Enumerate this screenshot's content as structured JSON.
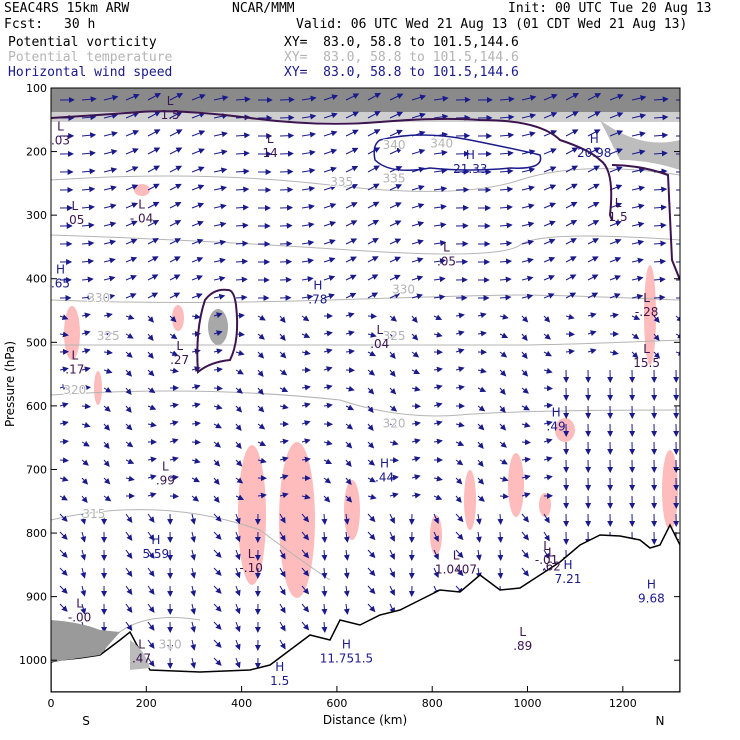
{
  "header": {
    "model": "SEAC4RS 15km ARW",
    "org": "NCAR/MMM",
    "init": "Init: 00 UTC Tue 20 Aug 13",
    "fcst_label": "Fcst:",
    "fcst_value": "30 h",
    "valid": "Valid: 06 UTC Wed 21 Aug 13 (01 CDT Wed 21 Aug 13)"
  },
  "fields": [
    {
      "name": "Potential vorticity",
      "xy": "XY=  83.0, 58.8 to 101.5,144.6",
      "color": "#000000"
    },
    {
      "name": "Potential temperature",
      "xy": "XY=  83.0, 58.8 to 101.5,144.6",
      "color": "#b4b4b4"
    },
    {
      "name": "Horizontal wind speed",
      "xy": "XY=  83.0, 58.8 to 101.5,144.6",
      "color": "#1a1a8c"
    }
  ],
  "colors": {
    "pv_contour": "#3c1450",
    "theta_contour": "#b4b4b4",
    "wind_vector": "#1a1a8c",
    "pv_shade": "#ffbcbc",
    "terrain": "#000000"
  },
  "chart_data": {
    "type": "cross-section",
    "xlabel": "Distance (km)",
    "ylabel": "Pressure (hPa)",
    "xlim": [
      0,
      1320
    ],
    "ylim": [
      1050,
      100
    ],
    "x_ticks": [
      0,
      200,
      400,
      600,
      800,
      1000,
      1200
    ],
    "y_ticks": [
      100,
      200,
      300,
      400,
      500,
      600,
      700,
      800,
      900,
      1000
    ],
    "left_end": "S",
    "right_end": "N",
    "theta_labels": [
      {
        "text": "335",
        "x": 610,
        "y": 248
      },
      {
        "text": "335",
        "x": 720,
        "y": 242
      },
      {
        "text": "340",
        "x": 720,
        "y": 190
      },
      {
        "text": "340",
        "x": 820,
        "y": 187
      },
      {
        "text": "330",
        "x": 100,
        "y": 430
      },
      {
        "text": "330",
        "x": 740,
        "y": 417
      },
      {
        "text": "325",
        "x": 120,
        "y": 490
      },
      {
        "text": "325",
        "x": 720,
        "y": 490
      },
      {
        "text": "320",
        "x": 50,
        "y": 575
      },
      {
        "text": "320",
        "x": 720,
        "y": 628
      },
      {
        "text": "315",
        "x": 90,
        "y": 770
      },
      {
        "text": "310",
        "x": 250,
        "y": 975
      }
    ],
    "extrema": [
      {
        "type": "L",
        "value": ".03",
        "x": 20,
        "y": 170
      },
      {
        "type": "L",
        "value": "1.5",
        "x": 250,
        "y": 130
      },
      {
        "type": "L",
        "value": "14",
        "x": 460,
        "y": 190
      },
      {
        "type": "H",
        "value": "21.33",
        "x": 880,
        "y": 215
      },
      {
        "type": "H",
        "value": "20.98",
        "x": 1140,
        "y": 190
      },
      {
        "type": "L",
        "value": "1.5",
        "x": 1190,
        "y": 290
      },
      {
        "type": "L",
        "value": ".05",
        "x": 50,
        "y": 295
      },
      {
        "type": "L",
        "value": "-.04",
        "x": 190,
        "y": 293
      },
      {
        "type": "L",
        "value": ".05",
        "x": 830,
        "y": 360
      },
      {
        "type": "H",
        "value": ".65",
        "x": 20,
        "y": 395
      },
      {
        "type": "H",
        "value": ".78",
        "x": 560,
        "y": 420
      },
      {
        "type": "L",
        "value": ".17",
        "x": 50,
        "y": 530
      },
      {
        "type": "L",
        "value": ".27",
        "x": 270,
        "y": 515
      },
      {
        "type": "L",
        "value": ".04",
        "x": 690,
        "y": 490
      },
      {
        "type": "L",
        "value": "15.5",
        "x": 1250,
        "y": 520
      },
      {
        "type": "L",
        "value": "-.28",
        "x": 1250,
        "y": 440
      },
      {
        "type": "H",
        "value": ".49",
        "x": 1060,
        "y": 620
      },
      {
        "type": "L",
        "value": ".99",
        "x": 240,
        "y": 705
      },
      {
        "type": "H",
        "value": ".44",
        "x": 700,
        "y": 700
      },
      {
        "type": "H",
        "value": "5.59",
        "x": 220,
        "y": 820
      },
      {
        "type": "L",
        "value": "-.10",
        "x": 420,
        "y": 842
      },
      {
        "type": "L",
        "value": "1.0407",
        "x": 850,
        "y": 845
      },
      {
        "type": "L",
        "value": ".62",
        "x": 1050,
        "y": 840
      },
      {
        "type": "L",
        "value": "-.01",
        "x": 1040,
        "y": 830
      },
      {
        "type": "H",
        "value": "7.21",
        "x": 1085,
        "y": 860
      },
      {
        "type": "H",
        "value": "9.68",
        "x": 1260,
        "y": 890
      },
      {
        "type": "L",
        "value": "-.00",
        "x": 60,
        "y": 920
      },
      {
        "type": "L",
        "value": ".47",
        "x": 190,
        "y": 985
      },
      {
        "type": "H",
        "value": "1.5",
        "x": 480,
        "y": 1020
      },
      {
        "type": "H",
        "value": "11.751.5",
        "x": 620,
        "y": 985
      },
      {
        "type": "L",
        "value": ".89",
        "x": 990,
        "y": 965
      }
    ]
  }
}
